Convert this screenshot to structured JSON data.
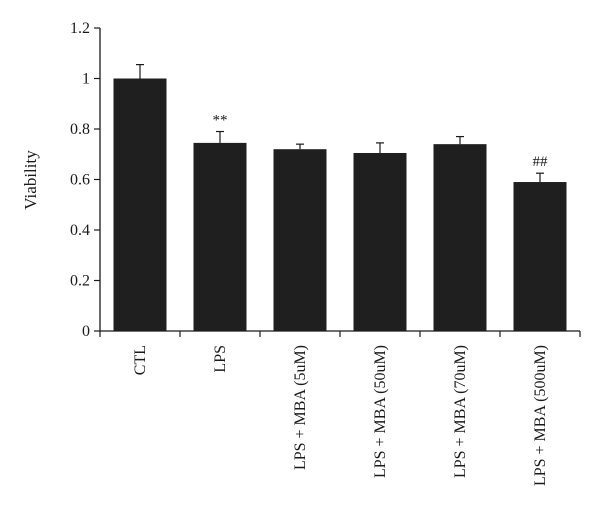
{
  "chart_data": {
    "type": "bar",
    "title": "",
    "xlabel": "",
    "ylabel": "Viability",
    "ylim": [
      0,
      1.2
    ],
    "yticks": [
      "0",
      "0.2",
      "0.4",
      "0.6",
      "0.8",
      "1",
      "1.2"
    ],
    "grid": false,
    "legend": "none",
    "bar_color": "#1f1f1f",
    "categories": [
      "CTL",
      "LPS",
      "LPS + MBA (5uM)",
      "LPS + MBA (50uM)",
      "LPS + MBA (70uM)",
      "LPS + MBA (500uM)"
    ],
    "values": [
      1.0,
      0.745,
      0.72,
      0.705,
      0.74,
      0.59
    ],
    "errors": [
      0.055,
      0.045,
      0.02,
      0.04,
      0.03,
      0.035
    ],
    "annotations": [
      "",
      "**",
      "",
      "",
      "",
      "##"
    ]
  }
}
